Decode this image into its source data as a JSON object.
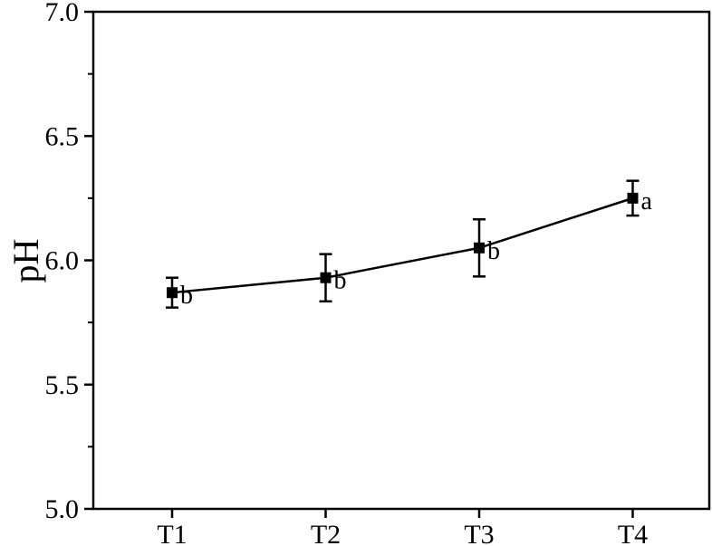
{
  "chart_data": {
    "type": "line",
    "categories": [
      "T1",
      "T2",
      "T3",
      "T4"
    ],
    "series": [
      {
        "values": [
          5.87,
          5.93,
          6.05,
          6.25
        ],
        "errors": [
          0.06,
          0.095,
          0.115,
          0.07
        ],
        "labels": [
          "b",
          "b",
          "b",
          "a"
        ]
      }
    ],
    "xlabel": "",
    "ylabel": "pH",
    "ylim": [
      5.0,
      7.0
    ],
    "yticks": [
      "5.0",
      "5.5",
      "6.0",
      "6.5",
      "7.0"
    ],
    "grid": false,
    "marker": "square",
    "line_color": "#000000"
  }
}
